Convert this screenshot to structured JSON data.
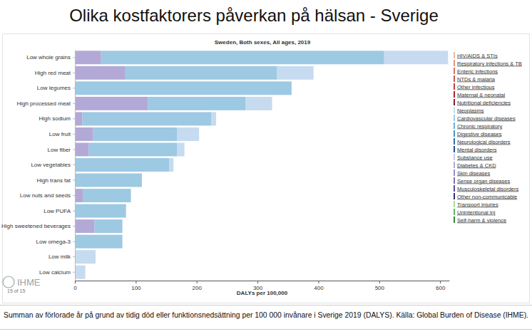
{
  "chart_data": {
    "type": "bar",
    "orientation": "horizontal",
    "stacked": true,
    "grid": false,
    "legend": "right",
    "title": "Olika kostfaktorers påverkan på hälsan - Sverige",
    "subtitle": "Sweden, Both sexes, All ages, 2019",
    "xlabel": "DALYs per 100,000",
    "caption": "Summan av förlorade år på grund av tidig död eller funktionsnedsättning per 100 000 invånare i Sverige 2019 (DALYS). Källa: Global Burden of Disease (IHME).",
    "logo_text": "IHME",
    "page_indicator": "15 of 15",
    "xlim": [
      0,
      615
    ],
    "xticks": [
      0,
      100,
      200,
      300,
      400,
      500,
      600
    ],
    "categories": [
      "Low whole grains",
      "High red meat",
      "Low legumes",
      "High processed meat",
      "High sodium",
      "Low fruit",
      "Low fiber",
      "Low vegetables",
      "High trans fat",
      "Low nuts and seeds",
      "Low PUFA",
      "High sweetened beverages",
      "Low omega-3",
      "Low milk",
      "Low calcium"
    ],
    "series": [
      {
        "name": "HIV/AIDS & STIs",
        "color": "#f4b48f",
        "values": [
          0,
          0,
          0,
          0,
          0,
          0,
          0,
          0,
          0,
          0,
          0,
          0,
          0,
          0,
          0
        ]
      },
      {
        "name": "Respiratory infections & TB",
        "color": "#ea9274",
        "values": [
          0,
          0,
          0,
          0,
          0,
          0,
          0,
          0,
          0,
          0,
          0,
          0,
          0,
          0,
          0
        ]
      },
      {
        "name": "Enteric infections",
        "color": "#e2705a",
        "values": [
          0,
          0,
          0,
          0,
          0,
          0,
          0,
          0,
          0,
          0,
          0,
          0,
          0,
          0,
          0
        ]
      },
      {
        "name": "NTDs & malaria",
        "color": "#d65446",
        "values": [
          0,
          0,
          0,
          0,
          0,
          0,
          0,
          0,
          0,
          0,
          0,
          0,
          0,
          0,
          0
        ]
      },
      {
        "name": "Other infectious",
        "color": "#c63a36",
        "values": [
          0,
          0,
          0,
          0,
          0,
          0,
          0,
          0,
          0,
          0,
          0,
          0,
          0,
          0,
          0
        ]
      },
      {
        "name": "Maternal & neonatal",
        "color": "#b2202e",
        "values": [
          0,
          0,
          0,
          0,
          0,
          0,
          0,
          0,
          0,
          0,
          0,
          0,
          0,
          0,
          0
        ]
      },
      {
        "name": "Nutritional deficiencies",
        "color": "#8e1a2a",
        "values": [
          0,
          0,
          0,
          0,
          0,
          0,
          0,
          0,
          0,
          0,
          0,
          0,
          0,
          0,
          0
        ]
      },
      {
        "name": "Neoplasms",
        "color": "#c6dbf0",
        "values": [
          105,
          60,
          0,
          44,
          8,
          36,
          12,
          7,
          0,
          0,
          0,
          0,
          0,
          34,
          17
        ]
      },
      {
        "name": "Cardiovascular diseases",
        "color": "#9dc9e2",
        "values": [
          465,
          249,
          356,
          160,
          212,
          138,
          145,
          155,
          110,
          79,
          84,
          46,
          78,
          0,
          0
        ]
      },
      {
        "name": "Chronic respiratory",
        "color": "#6faed6",
        "values": [
          0,
          0,
          0,
          0,
          0,
          0,
          0,
          0,
          0,
          0,
          0,
          0,
          0,
          0,
          0
        ]
      },
      {
        "name": "Digestive diseases",
        "color": "#4b91c5",
        "values": [
          0,
          0,
          0,
          0,
          0,
          0,
          0,
          0,
          0,
          0,
          0,
          0,
          0,
          0,
          0
        ]
      },
      {
        "name": "Neurological disorders",
        "color": "#2f6fa8",
        "values": [
          0,
          0,
          0,
          0,
          0,
          0,
          0,
          0,
          0,
          0,
          0,
          0,
          0,
          0,
          0
        ]
      },
      {
        "name": "Mental disorders",
        "color": "#1f4e8c",
        "values": [
          0,
          0,
          0,
          0,
          0,
          0,
          0,
          0,
          0,
          0,
          0,
          0,
          0,
          0,
          0
        ]
      },
      {
        "name": "Substance use",
        "color": "#cdc6e4",
        "values": [
          0,
          0,
          0,
          0,
          0,
          0,
          0,
          0,
          0,
          0,
          0,
          0,
          0,
          0,
          0
        ]
      },
      {
        "name": "Diabetes & CKD",
        "color": "#b3a9d7",
        "values": [
          43,
          83,
          0,
          120,
          12,
          30,
          23,
          0,
          0,
          13,
          0,
          32,
          0,
          0,
          0
        ]
      },
      {
        "name": "Skin diseases",
        "color": "#9a8dc6",
        "values": [
          0,
          0,
          0,
          0,
          0,
          0,
          0,
          0,
          0,
          0,
          0,
          0,
          0,
          0,
          0
        ]
      },
      {
        "name": "Sense organ diseases",
        "color": "#7f70b4",
        "values": [
          0,
          0,
          0,
          0,
          0,
          0,
          0,
          0,
          0,
          0,
          0,
          0,
          0,
          0,
          0
        ]
      },
      {
        "name": "Musculoskeletal disorders",
        "color": "#5e4a9c",
        "values": [
          0,
          0,
          0,
          0,
          0,
          0,
          0,
          0,
          0,
          0,
          0,
          0,
          0,
          0,
          0
        ]
      },
      {
        "name": "Other non-communicable",
        "color": "#3f2780",
        "values": [
          0,
          0,
          0,
          0,
          0,
          0,
          0,
          0,
          0,
          0,
          0,
          0,
          0,
          0,
          0
        ]
      },
      {
        "name": "Transport injuries",
        "color": "#a6dba0",
        "values": [
          0,
          0,
          0,
          0,
          0,
          0,
          0,
          0,
          0,
          0,
          0,
          0,
          0,
          0,
          0
        ]
      },
      {
        "name": "Unintentional inj",
        "color": "#5cb85c",
        "values": [
          0,
          0,
          0,
          0,
          0,
          0,
          0,
          0,
          0,
          0,
          0,
          0,
          0,
          0,
          0
        ]
      },
      {
        "name": "Self-harm & violence",
        "color": "#2e8b3e",
        "values": [
          0,
          0,
          0,
          0,
          0,
          0,
          0,
          0,
          0,
          0,
          0,
          0,
          0,
          0,
          0
        ]
      }
    ]
  }
}
